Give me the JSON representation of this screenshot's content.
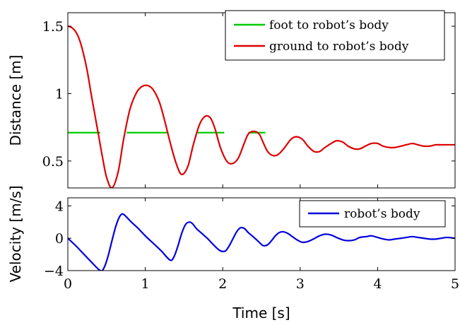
{
  "chart_data": [
    {
      "type": "line",
      "xlabel": "",
      "ylabel": "Distance [m]",
      "xlim": [
        0,
        5
      ],
      "ylim": [
        0.3,
        1.6
      ],
      "x_ticks": [
        0,
        1,
        2,
        3,
        4,
        5
      ],
      "y_ticks": [
        0.5,
        1,
        1.5
      ],
      "y_tick_labels": [
        "0.5",
        "1",
        "1.5"
      ],
      "legend_position": "top-right",
      "grid": false,
      "series": [
        {
          "name": "foot to robot’s body",
          "color": "#00cc00",
          "x": [
            0,
            0.42,
            0.7,
            1.3,
            1.64,
            2.02,
            2.27,
            2.55
          ],
          "y": [
            0.71,
            0.71,
            0.71,
            0.71,
            0.71,
            0.71,
            0.71,
            0.71
          ],
          "segments": [
            [
              0,
              0.42
            ],
            [
              0.76,
              1.3
            ],
            [
              1.67,
              2.02
            ],
            [
              2.33,
              2.55
            ]
          ]
        },
        {
          "name": "ground to robot’s body",
          "color": "#dd0000",
          "x": [
            0,
            0.05,
            0.1,
            0.15,
            0.2,
            0.25,
            0.3,
            0.35,
            0.4,
            0.45,
            0.5,
            0.57,
            0.65,
            0.72,
            0.8,
            0.88,
            0.95,
            1.03,
            1.1,
            1.18,
            1.25,
            1.32,
            1.4,
            1.47,
            1.55,
            1.62,
            1.7,
            1.77,
            1.84,
            1.9,
            1.97,
            2.05,
            2.12,
            2.2,
            2.27,
            2.33,
            2.4,
            2.47,
            2.52,
            2.58,
            2.65,
            2.72,
            2.8,
            2.88,
            2.95,
            3.03,
            3.1,
            3.18,
            3.25,
            3.32,
            3.4,
            3.47,
            3.55,
            3.62,
            3.7,
            3.77,
            3.84,
            3.92,
            4.0,
            4.07,
            4.15,
            4.22,
            4.3,
            4.37,
            4.45,
            4.52,
            4.6,
            4.67,
            4.75,
            4.82,
            4.9,
            5.0
          ],
          "y": [
            1.5,
            1.49,
            1.46,
            1.4,
            1.3,
            1.17,
            1.0,
            0.84,
            0.68,
            0.52,
            0.38,
            0.3,
            0.42,
            0.66,
            0.88,
            1.0,
            1.05,
            1.06,
            1.03,
            0.94,
            0.8,
            0.64,
            0.48,
            0.4,
            0.46,
            0.62,
            0.77,
            0.83,
            0.82,
            0.74,
            0.6,
            0.5,
            0.48,
            0.52,
            0.62,
            0.7,
            0.72,
            0.7,
            0.64,
            0.57,
            0.54,
            0.55,
            0.6,
            0.66,
            0.68,
            0.66,
            0.61,
            0.57,
            0.57,
            0.6,
            0.63,
            0.65,
            0.64,
            0.61,
            0.59,
            0.59,
            0.61,
            0.63,
            0.63,
            0.61,
            0.6,
            0.6,
            0.61,
            0.62,
            0.63,
            0.62,
            0.61,
            0.61,
            0.62,
            0.62,
            0.62,
            0.62
          ]
        }
      ]
    },
    {
      "type": "line",
      "xlabel": "Time [s]",
      "ylabel": "Velocity [m/s]",
      "xlim": [
        0,
        5
      ],
      "ylim": [
        -4,
        5
      ],
      "x_ticks": [
        0,
        1,
        2,
        3,
        4,
        5
      ],
      "x_tick_labels": [
        "0",
        "1",
        "2",
        "3",
        "4",
        "5"
      ],
      "y_ticks": [
        -4,
        0,
        4
      ],
      "y_tick_labels": [
        "−4",
        "0",
        "4"
      ],
      "legend_position": "top-right",
      "grid": false,
      "series": [
        {
          "name": "robot’s body",
          "color": "#0000dd",
          "x": [
            0,
            0.1,
            0.2,
            0.3,
            0.42,
            0.47,
            0.52,
            0.57,
            0.62,
            0.67,
            0.71,
            0.76,
            0.82,
            0.9,
            1.0,
            1.1,
            1.2,
            1.32,
            1.37,
            1.42,
            1.47,
            1.52,
            1.57,
            1.61,
            1.66,
            1.73,
            1.8,
            1.88,
            1.96,
            2.03,
            2.08,
            2.13,
            2.18,
            2.23,
            2.28,
            2.33,
            2.38,
            2.45,
            2.52,
            2.58,
            2.63,
            2.68,
            2.73,
            2.78,
            2.84,
            2.9,
            2.96,
            3.03,
            3.1,
            3.17,
            3.25,
            3.32,
            3.4,
            3.47,
            3.55,
            3.62,
            3.7,
            3.77,
            3.85,
            3.92,
            4.0,
            4.08,
            4.15,
            4.22,
            4.3,
            4.37,
            4.45,
            4.52,
            4.6,
            4.67,
            4.75,
            4.82,
            4.9,
            5.0
          ],
          "y": [
            0,
            -0.9,
            -1.9,
            -2.9,
            -4.0,
            -3.6,
            -2.2,
            -0.3,
            1.5,
            2.7,
            3.0,
            2.6,
            2.0,
            1.3,
            0.3,
            -0.6,
            -1.5,
            -2.7,
            -2.3,
            -1.0,
            0.6,
            1.7,
            2.0,
            1.8,
            1.2,
            0.6,
            0.0,
            -0.8,
            -1.5,
            -1.6,
            -1.0,
            -0.1,
            0.8,
            1.3,
            1.2,
            0.7,
            0.3,
            -0.3,
            -0.9,
            -0.8,
            -0.3,
            0.3,
            0.7,
            0.8,
            0.6,
            0.2,
            -0.2,
            -0.5,
            -0.4,
            -0.1,
            0.3,
            0.5,
            0.4,
            0.1,
            -0.2,
            -0.3,
            -0.2,
            0.1,
            0.2,
            0.3,
            0.1,
            -0.1,
            -0.2,
            -0.1,
            0.0,
            0.1,
            0.2,
            0.1,
            0.0,
            -0.1,
            -0.1,
            0.0,
            0.1,
            0.0
          ]
        }
      ]
    }
  ]
}
